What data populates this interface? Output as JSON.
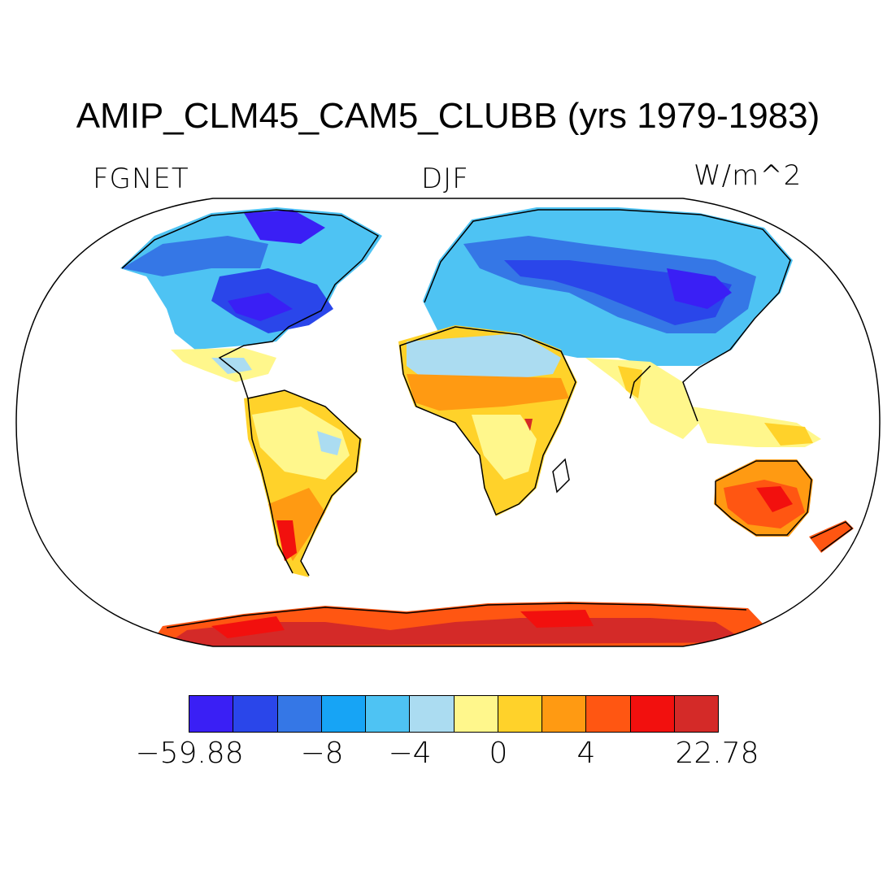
{
  "title": "AMIP_CLM45_CAM5_CLUBB (yrs 1979-1983)",
  "left_label": "FGNET",
  "center_label": "DJF",
  "right_label": "W/m^2",
  "colorbar": {
    "colors": [
      "#3a1ff5",
      "#2a46ea",
      "#3577e6",
      "#17a4f5",
      "#4ec3f3",
      "#abdcf1",
      "#fff78c",
      "#ffd22a",
      "#ff9a12",
      "#ff5612",
      "#f2100e",
      "#d42a28"
    ],
    "labels": [
      "−59.88",
      "−8",
      "−4",
      "0",
      "4",
      "22.78"
    ]
  }
}
